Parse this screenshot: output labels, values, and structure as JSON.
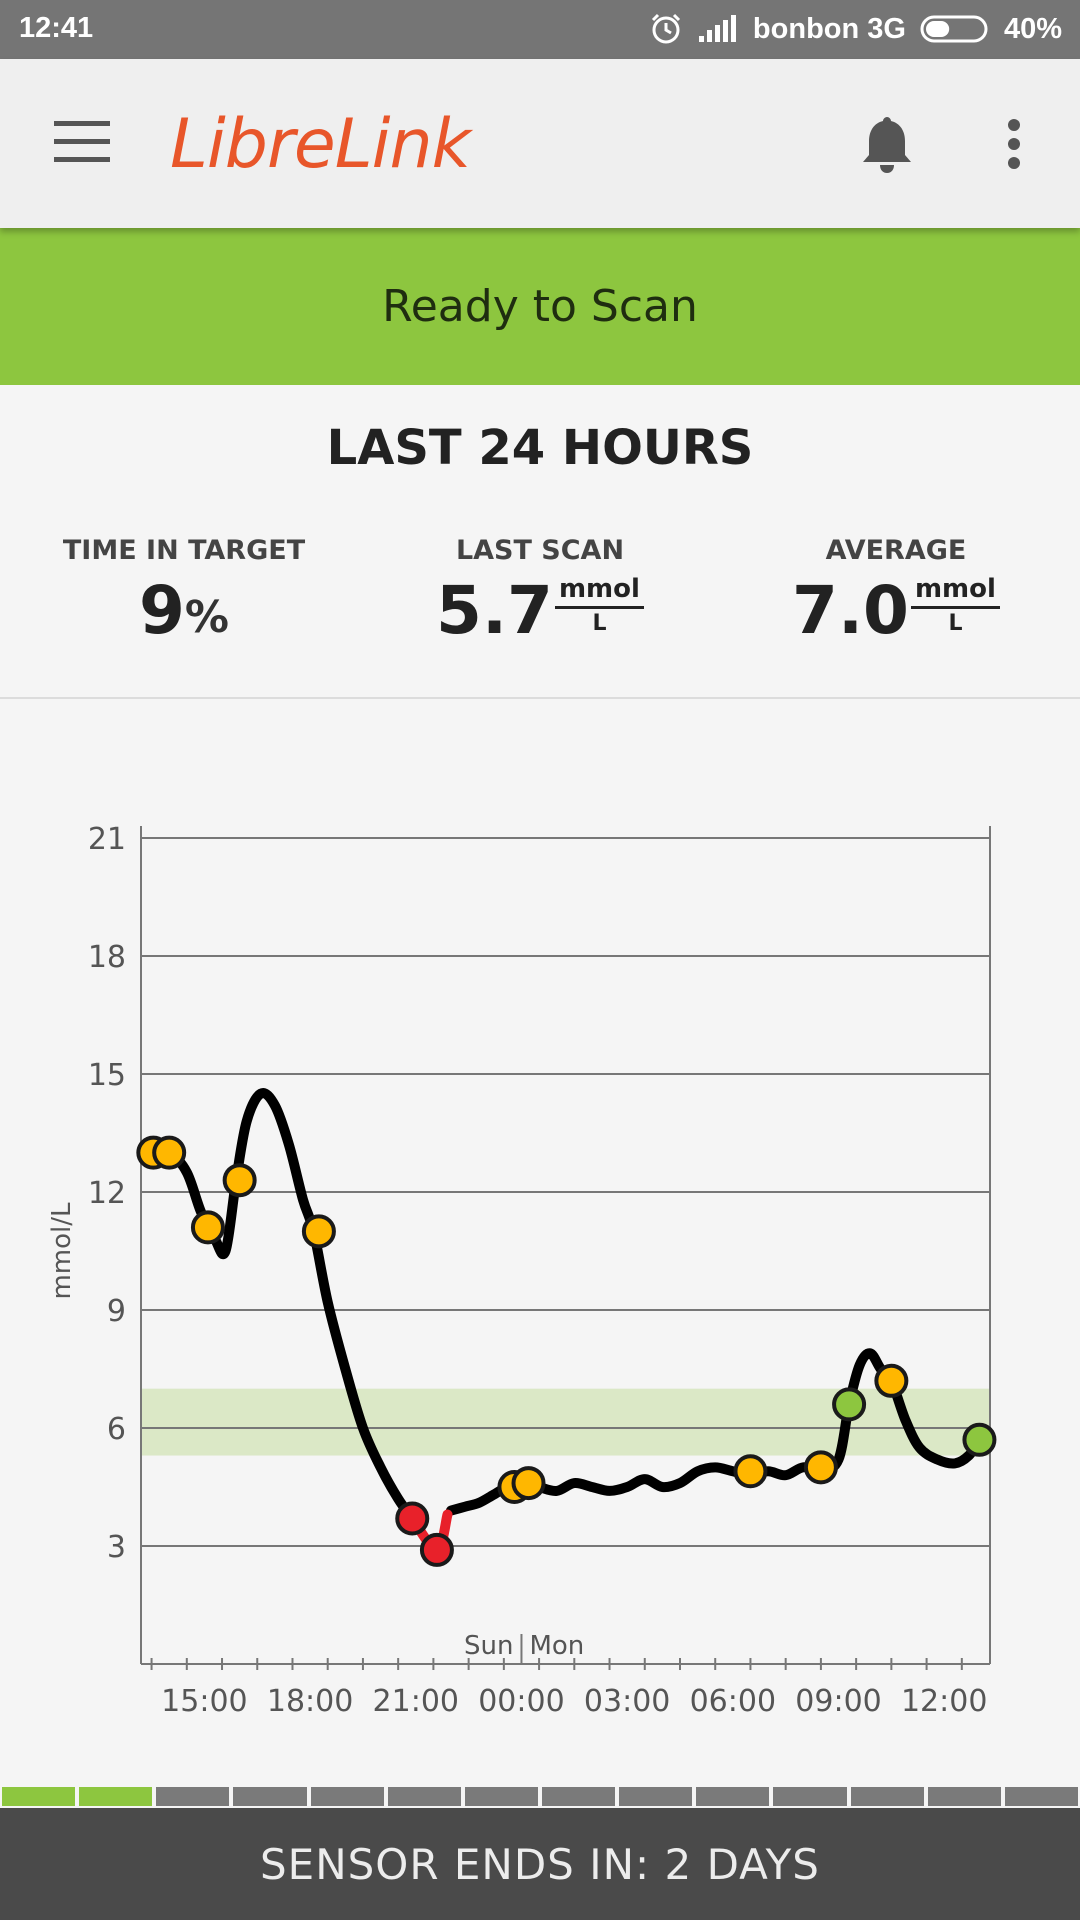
{
  "status_bar": {
    "time": "12:41",
    "carrier": "bonbon 3G",
    "battery": "40%",
    "battery_level": 0.4
  },
  "app_bar": {
    "title": "LibreLink",
    "menu_icon": "hamburger-icon",
    "bell_icon": "bell-icon",
    "overflow_icon": "kebab-icon"
  },
  "banner": {
    "text": "Ready to Scan"
  },
  "summary": {
    "title": "LAST 24 HOURS",
    "time_in_target": {
      "label": "TIME IN TARGET",
      "value": "9",
      "unit": "%"
    },
    "last_scan": {
      "label": "LAST SCAN",
      "value": "5.7",
      "unit_num": "mmol",
      "unit_den": "L"
    },
    "average": {
      "label": "AVERAGE",
      "value": "7.0",
      "unit_num": "mmol",
      "unit_den": "L"
    }
  },
  "chart_data": {
    "type": "line",
    "title": "",
    "xlabel": "",
    "ylabel": "mmol/L",
    "ylim": [
      0,
      21
    ],
    "yticks": [
      3,
      6,
      9,
      12,
      15,
      18,
      21
    ],
    "xlim": [
      13.2,
      37.3
    ],
    "xticks": [
      15,
      18,
      21,
      24,
      27,
      30,
      33,
      36
    ],
    "xtick_labels": [
      "15:00",
      "18:00",
      "21:00",
      "00:00",
      "03:00",
      "06:00",
      "09:00",
      "12:00"
    ],
    "day_labels": [
      "Sun",
      "Mon"
    ],
    "day_boundary": 24,
    "target_range": [
      5.3,
      7.0
    ],
    "grid": true,
    "colors": {
      "line": "#000000",
      "low": "#e8212a",
      "in_range": "#8dc63f",
      "out_of_range": "#ffb700",
      "target_band": "#dbe8c6"
    },
    "series": [
      {
        "values": [
          [
            13.5,
            13.0
          ],
          [
            14.0,
            13.0
          ],
          [
            14.5,
            12.5
          ],
          [
            14.9,
            11.5
          ],
          [
            15.3,
            10.8
          ],
          [
            15.6,
            10.5
          ],
          [
            15.9,
            12.3
          ],
          [
            16.2,
            13.8
          ],
          [
            16.6,
            14.5
          ],
          [
            17.0,
            14.2
          ],
          [
            17.4,
            13.2
          ],
          [
            17.8,
            11.8
          ],
          [
            18.1,
            11.0
          ],
          [
            18.5,
            9.2
          ],
          [
            19.0,
            7.5
          ],
          [
            19.5,
            6.0
          ],
          [
            20.0,
            5.0
          ],
          [
            20.5,
            4.2
          ],
          [
            20.9,
            3.7
          ],
          [
            21.3,
            3.2
          ],
          [
            21.6,
            2.9
          ],
          [
            21.8,
            3.5
          ],
          [
            22.0,
            3.9
          ],
          [
            22.4,
            4.0
          ],
          [
            22.8,
            4.1
          ],
          [
            23.2,
            4.3
          ],
          [
            23.6,
            4.5
          ],
          [
            24.1,
            4.6
          ],
          [
            24.5,
            4.5
          ],
          [
            25.0,
            4.4
          ],
          [
            25.5,
            4.6
          ],
          [
            26.0,
            4.5
          ],
          [
            26.5,
            4.4
          ],
          [
            27.0,
            4.5
          ],
          [
            27.5,
            4.7
          ],
          [
            28.0,
            4.5
          ],
          [
            28.5,
            4.6
          ],
          [
            29.0,
            4.9
          ],
          [
            29.5,
            5.0
          ],
          [
            30.0,
            4.9
          ],
          [
            30.5,
            4.8
          ],
          [
            31.0,
            4.9
          ],
          [
            31.5,
            4.8
          ],
          [
            32.0,
            5.0
          ],
          [
            32.5,
            4.9
          ],
          [
            33.0,
            5.2
          ],
          [
            33.3,
            6.6
          ],
          [
            33.6,
            7.6
          ],
          [
            33.9,
            7.9
          ],
          [
            34.2,
            7.5
          ],
          [
            34.5,
            7.2
          ],
          [
            34.9,
            6.2
          ],
          [
            35.3,
            5.5
          ],
          [
            35.8,
            5.2
          ],
          [
            36.3,
            5.1
          ],
          [
            36.7,
            5.3
          ],
          [
            37.0,
            5.7
          ]
        ]
      }
    ],
    "low_segments": [
      [
        [
          20.9,
          3.7
        ],
        [
          21.6,
          2.9
        ],
        [
          21.9,
          3.8
        ]
      ]
    ],
    "points": [
      {
        "x": 13.55,
        "y": 13.0,
        "status": "out_of_range"
      },
      {
        "x": 14.0,
        "y": 13.0,
        "status": "out_of_range"
      },
      {
        "x": 15.1,
        "y": 11.1,
        "status": "out_of_range"
      },
      {
        "x": 16.0,
        "y": 12.3,
        "status": "out_of_range"
      },
      {
        "x": 18.25,
        "y": 11.0,
        "status": "out_of_range"
      },
      {
        "x": 20.9,
        "y": 3.7,
        "status": "low"
      },
      {
        "x": 21.6,
        "y": 2.9,
        "status": "low"
      },
      {
        "x": 23.8,
        "y": 4.5,
        "status": "out_of_range"
      },
      {
        "x": 24.2,
        "y": 4.6,
        "status": "out_of_range"
      },
      {
        "x": 30.5,
        "y": 4.9,
        "status": "out_of_range"
      },
      {
        "x": 32.5,
        "y": 5.0,
        "status": "out_of_range"
      },
      {
        "x": 33.3,
        "y": 6.6,
        "status": "in_range"
      },
      {
        "x": 34.5,
        "y": 7.2,
        "status": "out_of_range"
      },
      {
        "x": 37.0,
        "y": 5.7,
        "status": "in_range"
      }
    ]
  },
  "sensor": {
    "text": "SENSOR ENDS IN: 2 DAYS",
    "segments_total": 14,
    "segments_elapsed": 2
  }
}
